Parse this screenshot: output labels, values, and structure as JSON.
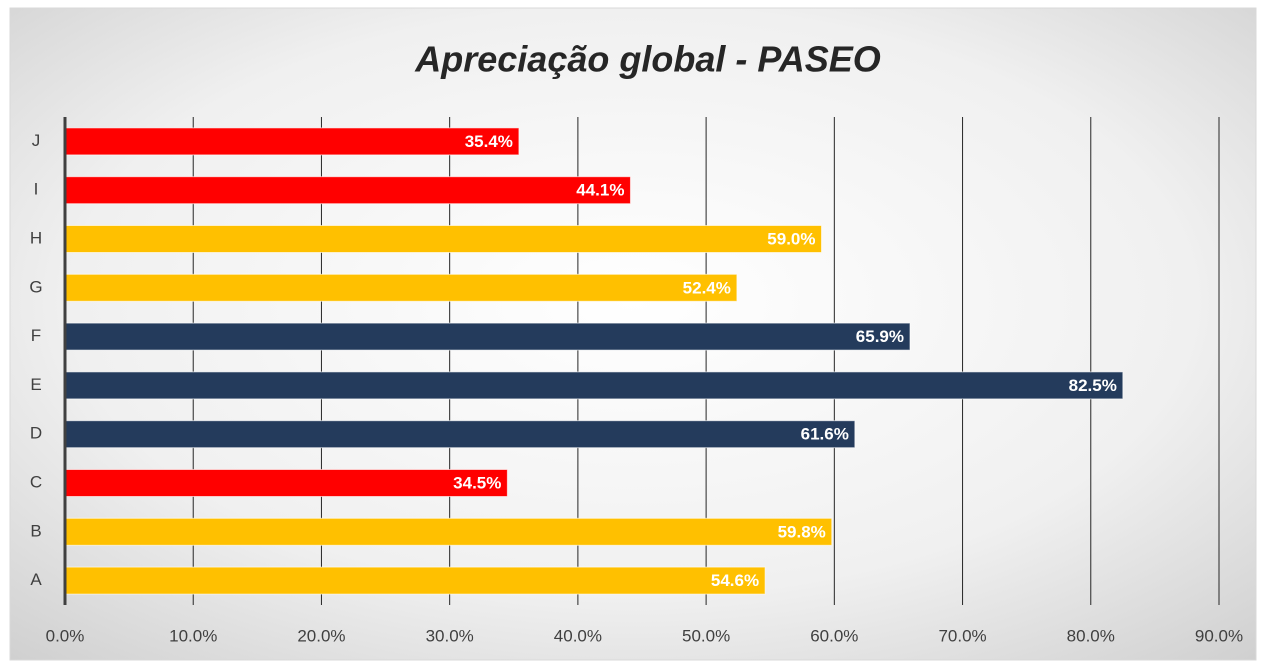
{
  "chart_data": {
    "type": "bar",
    "orientation": "horizontal",
    "title": "Apreciação global - PASEO",
    "categories": [
      "A",
      "B",
      "C",
      "D",
      "E",
      "F",
      "G",
      "H",
      "I",
      "J"
    ],
    "values": [
      54.6,
      59.8,
      34.5,
      61.6,
      82.5,
      65.9,
      52.4,
      59.0,
      44.1,
      35.4
    ],
    "value_labels": [
      "54.6%",
      "59.8%",
      "34.5%",
      "61.6%",
      "82.5%",
      "65.9%",
      "52.4%",
      "59.0%",
      "44.1%",
      "35.4%"
    ],
    "colors": [
      "#ffc000",
      "#ffc000",
      "#ff0000",
      "#243b5c",
      "#243b5c",
      "#243b5c",
      "#ffc000",
      "#ffc000",
      "#ff0000",
      "#ff0000"
    ],
    "xlim": [
      0,
      90
    ],
    "xticks": [
      {
        "value": 0,
        "label": "0.0%"
      },
      {
        "value": 10,
        "label": "10.0%"
      },
      {
        "value": 20,
        "label": "20.0%"
      },
      {
        "value": 30,
        "label": "30.0%"
      },
      {
        "value": 40,
        "label": "40.0%"
      },
      {
        "value": 50,
        "label": "50.0%"
      },
      {
        "value": 60,
        "label": "60.0%"
      },
      {
        "value": 70,
        "label": "70.0%"
      },
      {
        "value": 80,
        "label": "80.0%"
      },
      {
        "value": 90,
        "label": "90.0%"
      }
    ],
    "grid": true
  }
}
